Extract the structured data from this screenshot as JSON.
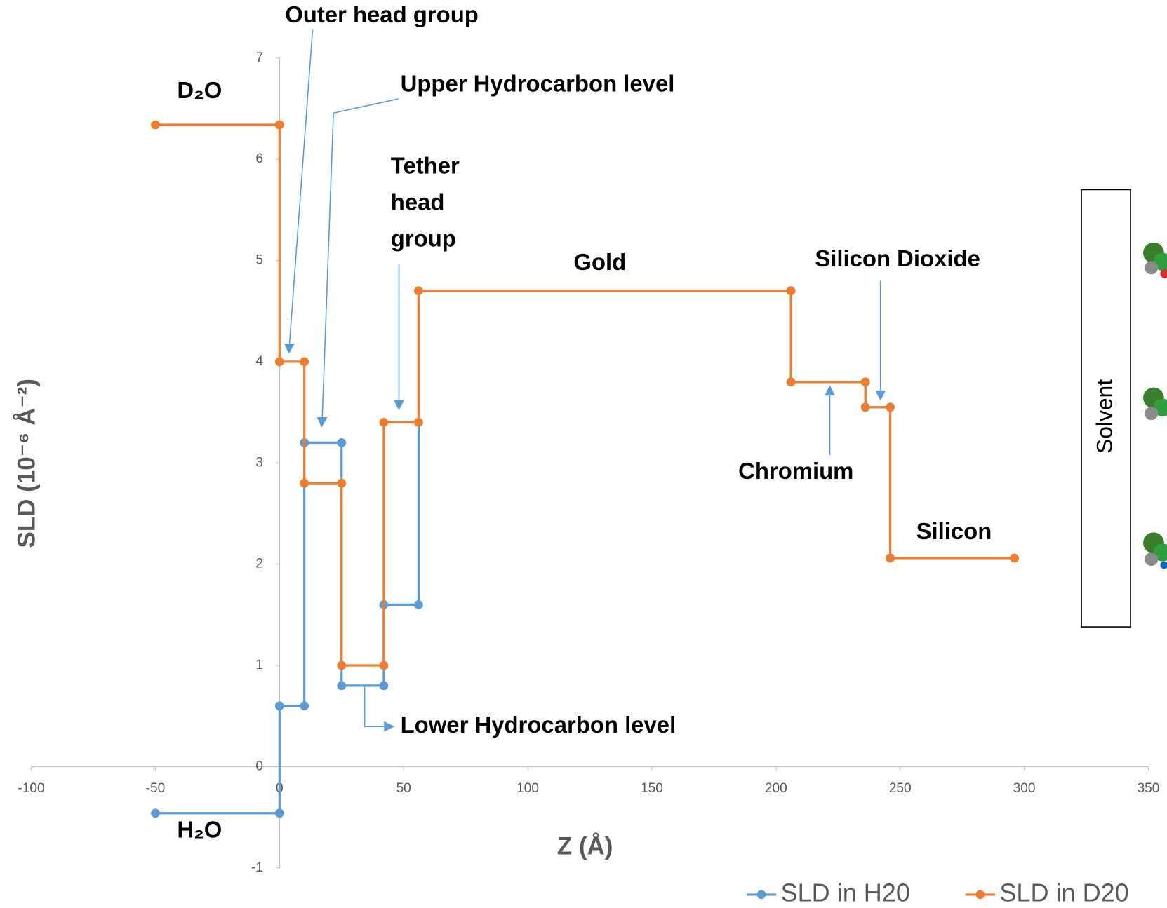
{
  "chart_data": {
    "type": "line",
    "x_label": "Z (Å)",
    "y_label": "SLD (10⁻⁶ Å⁻²)",
    "xlim": [
      -100,
      350
    ],
    "xticks": [
      -100,
      -50,
      0,
      50,
      100,
      150,
      200,
      250,
      300,
      350
    ],
    "ylim": [
      -1,
      7
    ],
    "yticks": [
      -1,
      0,
      1,
      2,
      3,
      4,
      5,
      6,
      7
    ],
    "series": [
      {
        "name": "SLD in H20",
        "color": "#5b9bd5",
        "x": [
          -50,
          0,
          0,
          10,
          10,
          25,
          25,
          42,
          42,
          56,
          56,
          56,
          206,
          206,
          236,
          236,
          246,
          246,
          296
        ],
        "values": [
          -0.46,
          -0.46,
          0.6,
          0.6,
          3.2,
          3.2,
          0.8,
          0.8,
          1.6,
          1.6,
          3.4,
          4.7,
          4.7,
          3.8,
          3.8,
          3.55,
          3.55,
          2.06,
          2.06
        ]
      },
      {
        "name": "SLD in D20",
        "color": "#ed7d31",
        "x": [
          -50,
          0,
          0,
          10,
          10,
          25,
          25,
          42,
          42,
          56,
          56,
          206,
          206,
          236,
          236,
          246,
          246,
          296
        ],
        "values": [
          6.34,
          6.34,
          4,
          4,
          2.8,
          2.8,
          1,
          1,
          3.4,
          3.4,
          4.7,
          4.7,
          3.8,
          3.8,
          3.55,
          3.55,
          2.06,
          2.06
        ]
      }
    ],
    "annotations": [
      "Outer head group",
      "Upper Hydrocarbon level",
      "Gold",
      "Silicon Dioxide",
      "Chromium",
      "Silicon",
      "Lower Hydrocarbon level",
      "D₂O",
      "H₂O"
    ],
    "tether_label": [
      "Tether",
      "head",
      "group"
    ],
    "side_label": "Solvent"
  }
}
